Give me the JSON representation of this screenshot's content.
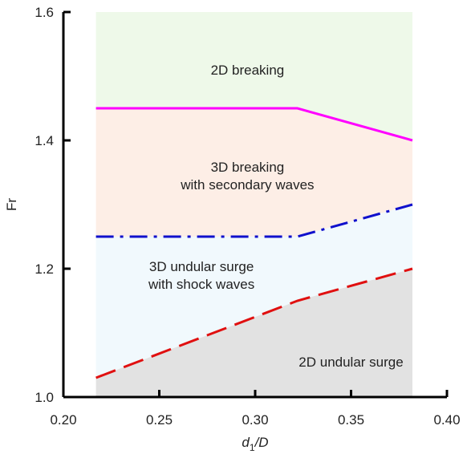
{
  "chart_data": {
    "type": "line",
    "title": "",
    "xlabel": "d1/D",
    "xlabel_main": "d",
    "xlabel_sub": "1",
    "xlabel_rest": "/D",
    "ylabel": "Fr",
    "xlim": [
      0.2,
      0.4
    ],
    "ylim": [
      1.0,
      1.6
    ],
    "x_ticks": [
      0.2,
      0.25,
      0.3,
      0.35,
      0.4
    ],
    "x_tick_labels": [
      "0.20",
      "0.25",
      "0.30",
      "0.35",
      "0.40"
    ],
    "y_ticks": [
      1.0,
      1.2,
      1.4,
      1.6
    ],
    "y_tick_labels": [
      "1.0",
      "1.2",
      "1.4",
      "1.6"
    ],
    "data_x_range": [
      0.217,
      0.382
    ],
    "grid": false,
    "series": [
      {
        "color": "#ff00ff",
        "dash": "solid",
        "x": [
          0.217,
          0.322,
          0.382
        ],
        "y": [
          1.45,
          1.45,
          1.4
        ]
      },
      {
        "color": "#1010cc",
        "dash": "dashdot",
        "x": [
          0.217,
          0.322,
          0.382
        ],
        "y": [
          1.25,
          1.25,
          1.3
        ]
      },
      {
        "color": "#e01010",
        "dash": "dashed",
        "x": [
          0.217,
          0.322,
          0.382
        ],
        "y": [
          1.03,
          1.15,
          1.2
        ]
      }
    ],
    "regions": [
      {
        "lines": [
          "2D breaking"
        ],
        "fill": "#eef9e9",
        "label_x": 0.296,
        "label_y": 1.51
      },
      {
        "lines": [
          "3D breaking",
          "with secondary waves"
        ],
        "fill": "#fdeee6",
        "label_x": 0.296,
        "label_y": 1.345
      },
      {
        "lines": [
          "3D undular surge",
          "with shock waves"
        ],
        "fill": "#f1f9fd",
        "label_x": 0.272,
        "label_y": 1.19
      },
      {
        "lines": [
          "2D undular surge"
        ],
        "fill": "#e2e2e2",
        "label_x": 0.35,
        "label_y": 1.055
      }
    ]
  }
}
